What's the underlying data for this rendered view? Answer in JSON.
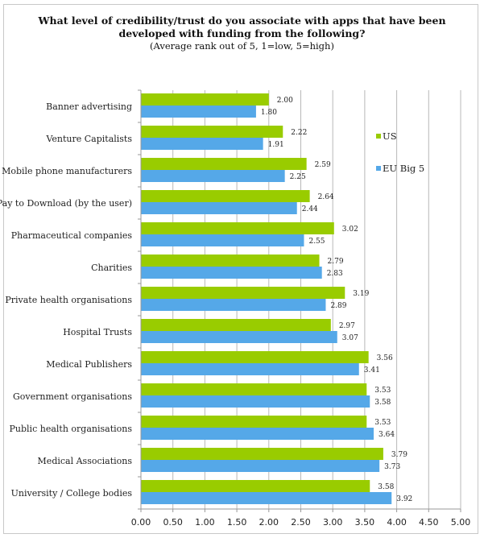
{
  "chart_data": {
    "type": "bar",
    "orientation": "horizontal",
    "title": "What level of credibility/trust do you associate with apps that have been developed with funding from the following?",
    "title_lines": [
      "What level of credibility/trust do you associate with apps that have been",
      "developed with funding from the following?"
    ],
    "subtitle": "(Average rank out of 5, 1=low, 5=high)",
    "xlabel": "",
    "ylabel": "",
    "xlim": [
      0,
      5
    ],
    "xticks": [
      "0.00",
      "0.50",
      "1.00",
      "1.50",
      "2.00",
      "2.50",
      "3.00",
      "3.50",
      "4.00",
      "4.50",
      "5.00"
    ],
    "tick_step": 0.5,
    "grid": true,
    "legend_position": "right",
    "categories": [
      "Banner advertising",
      "Venture Capitalists",
      "Mobile phone manufacturers",
      "Pay to Download (by the user)",
      "Pharmaceutical companies",
      "Charities",
      "Private health organisations",
      "Hospital Trusts",
      "Medical Publishers",
      "Government organisations",
      "Public health organisations",
      "Medical Associations",
      "University / College bodies"
    ],
    "series": [
      {
        "name": "US",
        "color": "#99cc00",
        "values": [
          2.0,
          2.22,
          2.59,
          2.64,
          3.02,
          2.79,
          3.19,
          2.97,
          3.56,
          3.53,
          3.53,
          3.79,
          3.58
        ]
      },
      {
        "name": "EU Big 5",
        "color": "#55a8e8",
        "values": [
          1.8,
          1.91,
          2.25,
          2.44,
          2.55,
          2.83,
          2.89,
          3.07,
          3.41,
          3.58,
          3.64,
          3.73,
          3.92
        ]
      }
    ]
  }
}
